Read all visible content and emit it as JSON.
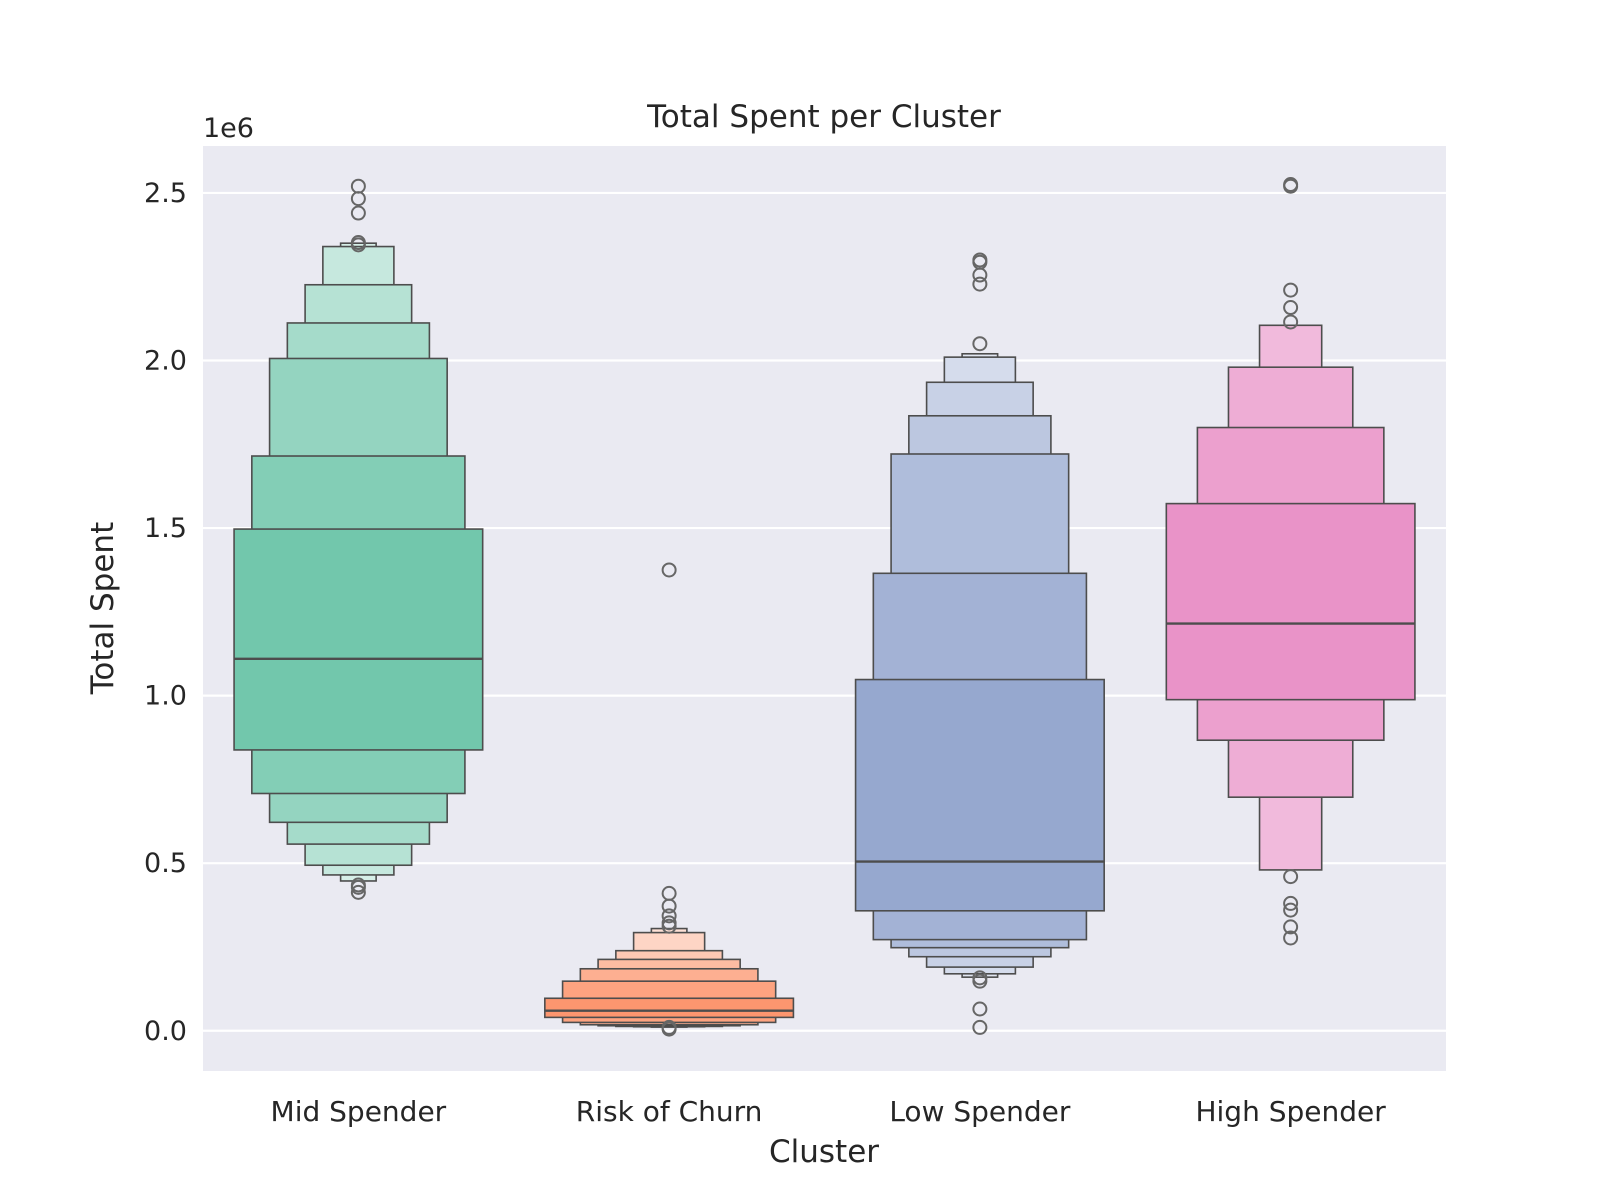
{
  "chart_data": {
    "type": "boxen",
    "title": "Total Spent per Cluster",
    "xlabel": "Cluster",
    "ylabel": "Total Spent",
    "offset_label": "1e6",
    "ylim": [
      -0.12,
      2.64
    ],
    "yticks": [
      0.0,
      0.5,
      1.0,
      1.5,
      2.0,
      2.5
    ],
    "ytick_labels": [
      "0.0",
      "0.5",
      "1.0",
      "1.5",
      "2.0",
      "2.5"
    ],
    "grid": true,
    "legend": "none",
    "categories": [
      "Mid Spender",
      "Risk of Churn",
      "Low Spender",
      "High Spender"
    ],
    "series": [
      {
        "category": "Mid Spender",
        "color": "#66c2a5",
        "median": 1.11,
        "boxes": [
          [
            0.838,
            1.497
          ],
          [
            0.708,
            1.715
          ],
          [
            0.622,
            2.006
          ],
          [
            0.557,
            2.112
          ],
          [
            0.494,
            2.226
          ],
          [
            0.465,
            2.34
          ],
          [
            0.447,
            2.35
          ]
        ],
        "outliers": [
          0.413,
          0.428,
          0.435,
          2.345,
          2.352,
          2.44,
          2.483,
          2.52
        ]
      },
      {
        "category": "Risk of Churn",
        "color": "#fc8d62",
        "median": 0.06,
        "boxes": [
          [
            0.04,
            0.097
          ],
          [
            0.025,
            0.148
          ],
          [
            0.018,
            0.185
          ],
          [
            0.015,
            0.213
          ],
          [
            0.013,
            0.239
          ],
          [
            0.012,
            0.293
          ],
          [
            0.011,
            0.305
          ]
        ],
        "outliers": [
          0.005,
          0.01,
          0.312,
          0.322,
          0.343,
          0.372,
          0.41,
          1.375
        ]
      },
      {
        "category": "Low Spender",
        "color": "#8da0cb",
        "median": 0.505,
        "boxes": [
          [
            0.358,
            1.048
          ],
          [
            0.272,
            1.365
          ],
          [
            0.248,
            1.721
          ],
          [
            0.221,
            1.835
          ],
          [
            0.19,
            1.935
          ],
          [
            0.17,
            2.01
          ],
          [
            0.16,
            2.02
          ]
        ],
        "outliers": [
          0.01,
          0.065,
          0.148,
          0.158,
          2.05,
          2.228,
          2.255,
          2.293,
          2.3
        ]
      },
      {
        "category": "High Spender",
        "color": "#e78ac3",
        "median": 1.215,
        "boxes": [
          [
            0.988,
            1.573
          ],
          [
            0.867,
            1.8
          ],
          [
            0.697,
            1.98
          ],
          [
            0.48,
            2.105
          ]
        ],
        "outliers": [
          0.277,
          0.31,
          0.36,
          0.38,
          0.46,
          2.115,
          2.158,
          2.21,
          2.52,
          2.525
        ]
      }
    ]
  }
}
